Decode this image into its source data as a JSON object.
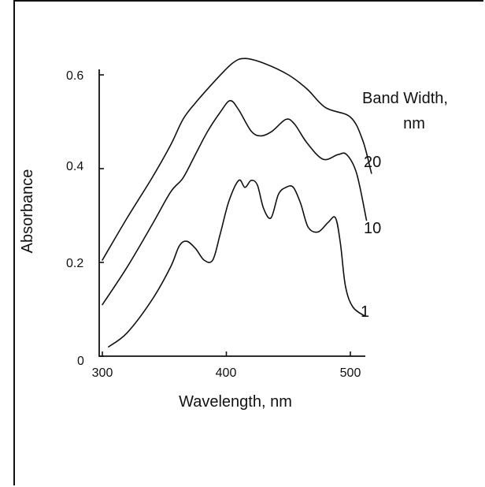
{
  "chart_data": {
    "type": "line",
    "xlabel": "Wavelength, nm",
    "ylabel": "Absorbance",
    "xlim": [
      300,
      520
    ],
    "ylim": [
      0,
      0.62
    ],
    "x_ticks": [
      {
        "value": 300,
        "label": "300"
      },
      {
        "value": 400,
        "label": "400"
      },
      {
        "value": 500,
        "label": "500"
      }
    ],
    "y_ticks": [
      {
        "value": 0,
        "label": "0"
      },
      {
        "value": 0.2,
        "label": "0.2"
      },
      {
        "value": 0.4,
        "label": "0.4"
      },
      {
        "value": 0.6,
        "label": "0.6"
      }
    ],
    "legend_title": [
      "Band Width,",
      "nm"
    ],
    "series": [
      {
        "name": "20",
        "x": [
          300,
          320,
          340,
          355,
          365,
          375,
          390,
          405,
          415,
          430,
          450,
          465,
          480,
          500,
          510,
          517
        ],
        "y": [
          0.205,
          0.295,
          0.38,
          0.45,
          0.505,
          0.54,
          0.585,
          0.625,
          0.635,
          0.625,
          0.6,
          0.57,
          0.53,
          0.51,
          0.46,
          0.39
        ]
      },
      {
        "name": "10",
        "x": [
          300,
          320,
          340,
          355,
          365,
          375,
          385,
          395,
          403,
          410,
          420,
          428,
          437,
          448,
          455,
          465,
          478,
          490,
          497,
          505,
          513
        ],
        "y": [
          0.11,
          0.19,
          0.28,
          0.35,
          0.38,
          0.43,
          0.48,
          0.52,
          0.545,
          0.525,
          0.48,
          0.47,
          0.48,
          0.505,
          0.495,
          0.455,
          0.42,
          0.43,
          0.43,
          0.39,
          0.29
        ]
      },
      {
        "name": "1",
        "x": [
          305,
          320,
          340,
          355,
          362,
          368,
          375,
          382,
          389,
          395,
          402,
          410,
          415,
          420,
          425,
          430,
          436,
          442,
          448,
          454,
          460,
          466,
          474,
          482,
          488,
          492,
          496,
          502,
          512
        ],
        "y": [
          0.02,
          0.05,
          0.12,
          0.19,
          0.235,
          0.245,
          0.23,
          0.205,
          0.205,
          0.26,
          0.33,
          0.375,
          0.36,
          0.375,
          0.365,
          0.315,
          0.295,
          0.345,
          0.36,
          0.36,
          0.325,
          0.275,
          0.265,
          0.285,
          0.295,
          0.24,
          0.15,
          0.105,
          0.085
        ]
      }
    ]
  }
}
